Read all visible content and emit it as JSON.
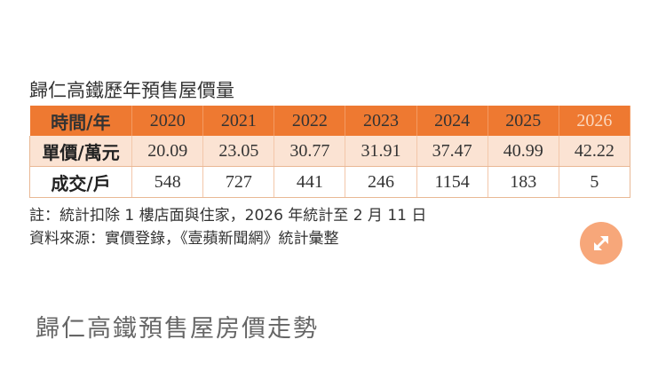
{
  "table": {
    "title": "歸仁高鐵歷年預售屋價量",
    "header_label": "時間/年",
    "years": [
      "2020",
      "2021",
      "2022",
      "2023",
      "2024",
      "2025",
      "2026"
    ],
    "price_label": "單價/萬元",
    "prices": [
      "20.09",
      "23.05",
      "30.77",
      "31.91",
      "37.47",
      "40.99",
      "42.22"
    ],
    "deals_label": "成交/戶",
    "deals": [
      "548",
      "727",
      "441",
      "246",
      "1154",
      "183",
      "5"
    ],
    "note": "註：統計扣除 1 樓店面與住家，2026 年統計至 2 月 11 日",
    "source": "資料來源：實價登錄，《壹蘋新聞網》統計彙整"
  },
  "expand_icon": "expand-arrows-icon",
  "caption": "歸仁高鐵預售屋房價走勢",
  "colors": {
    "header_bg": "#ee7931",
    "price_row_bg": "#fbe3d3",
    "button_bg": "#f7a77a"
  }
}
